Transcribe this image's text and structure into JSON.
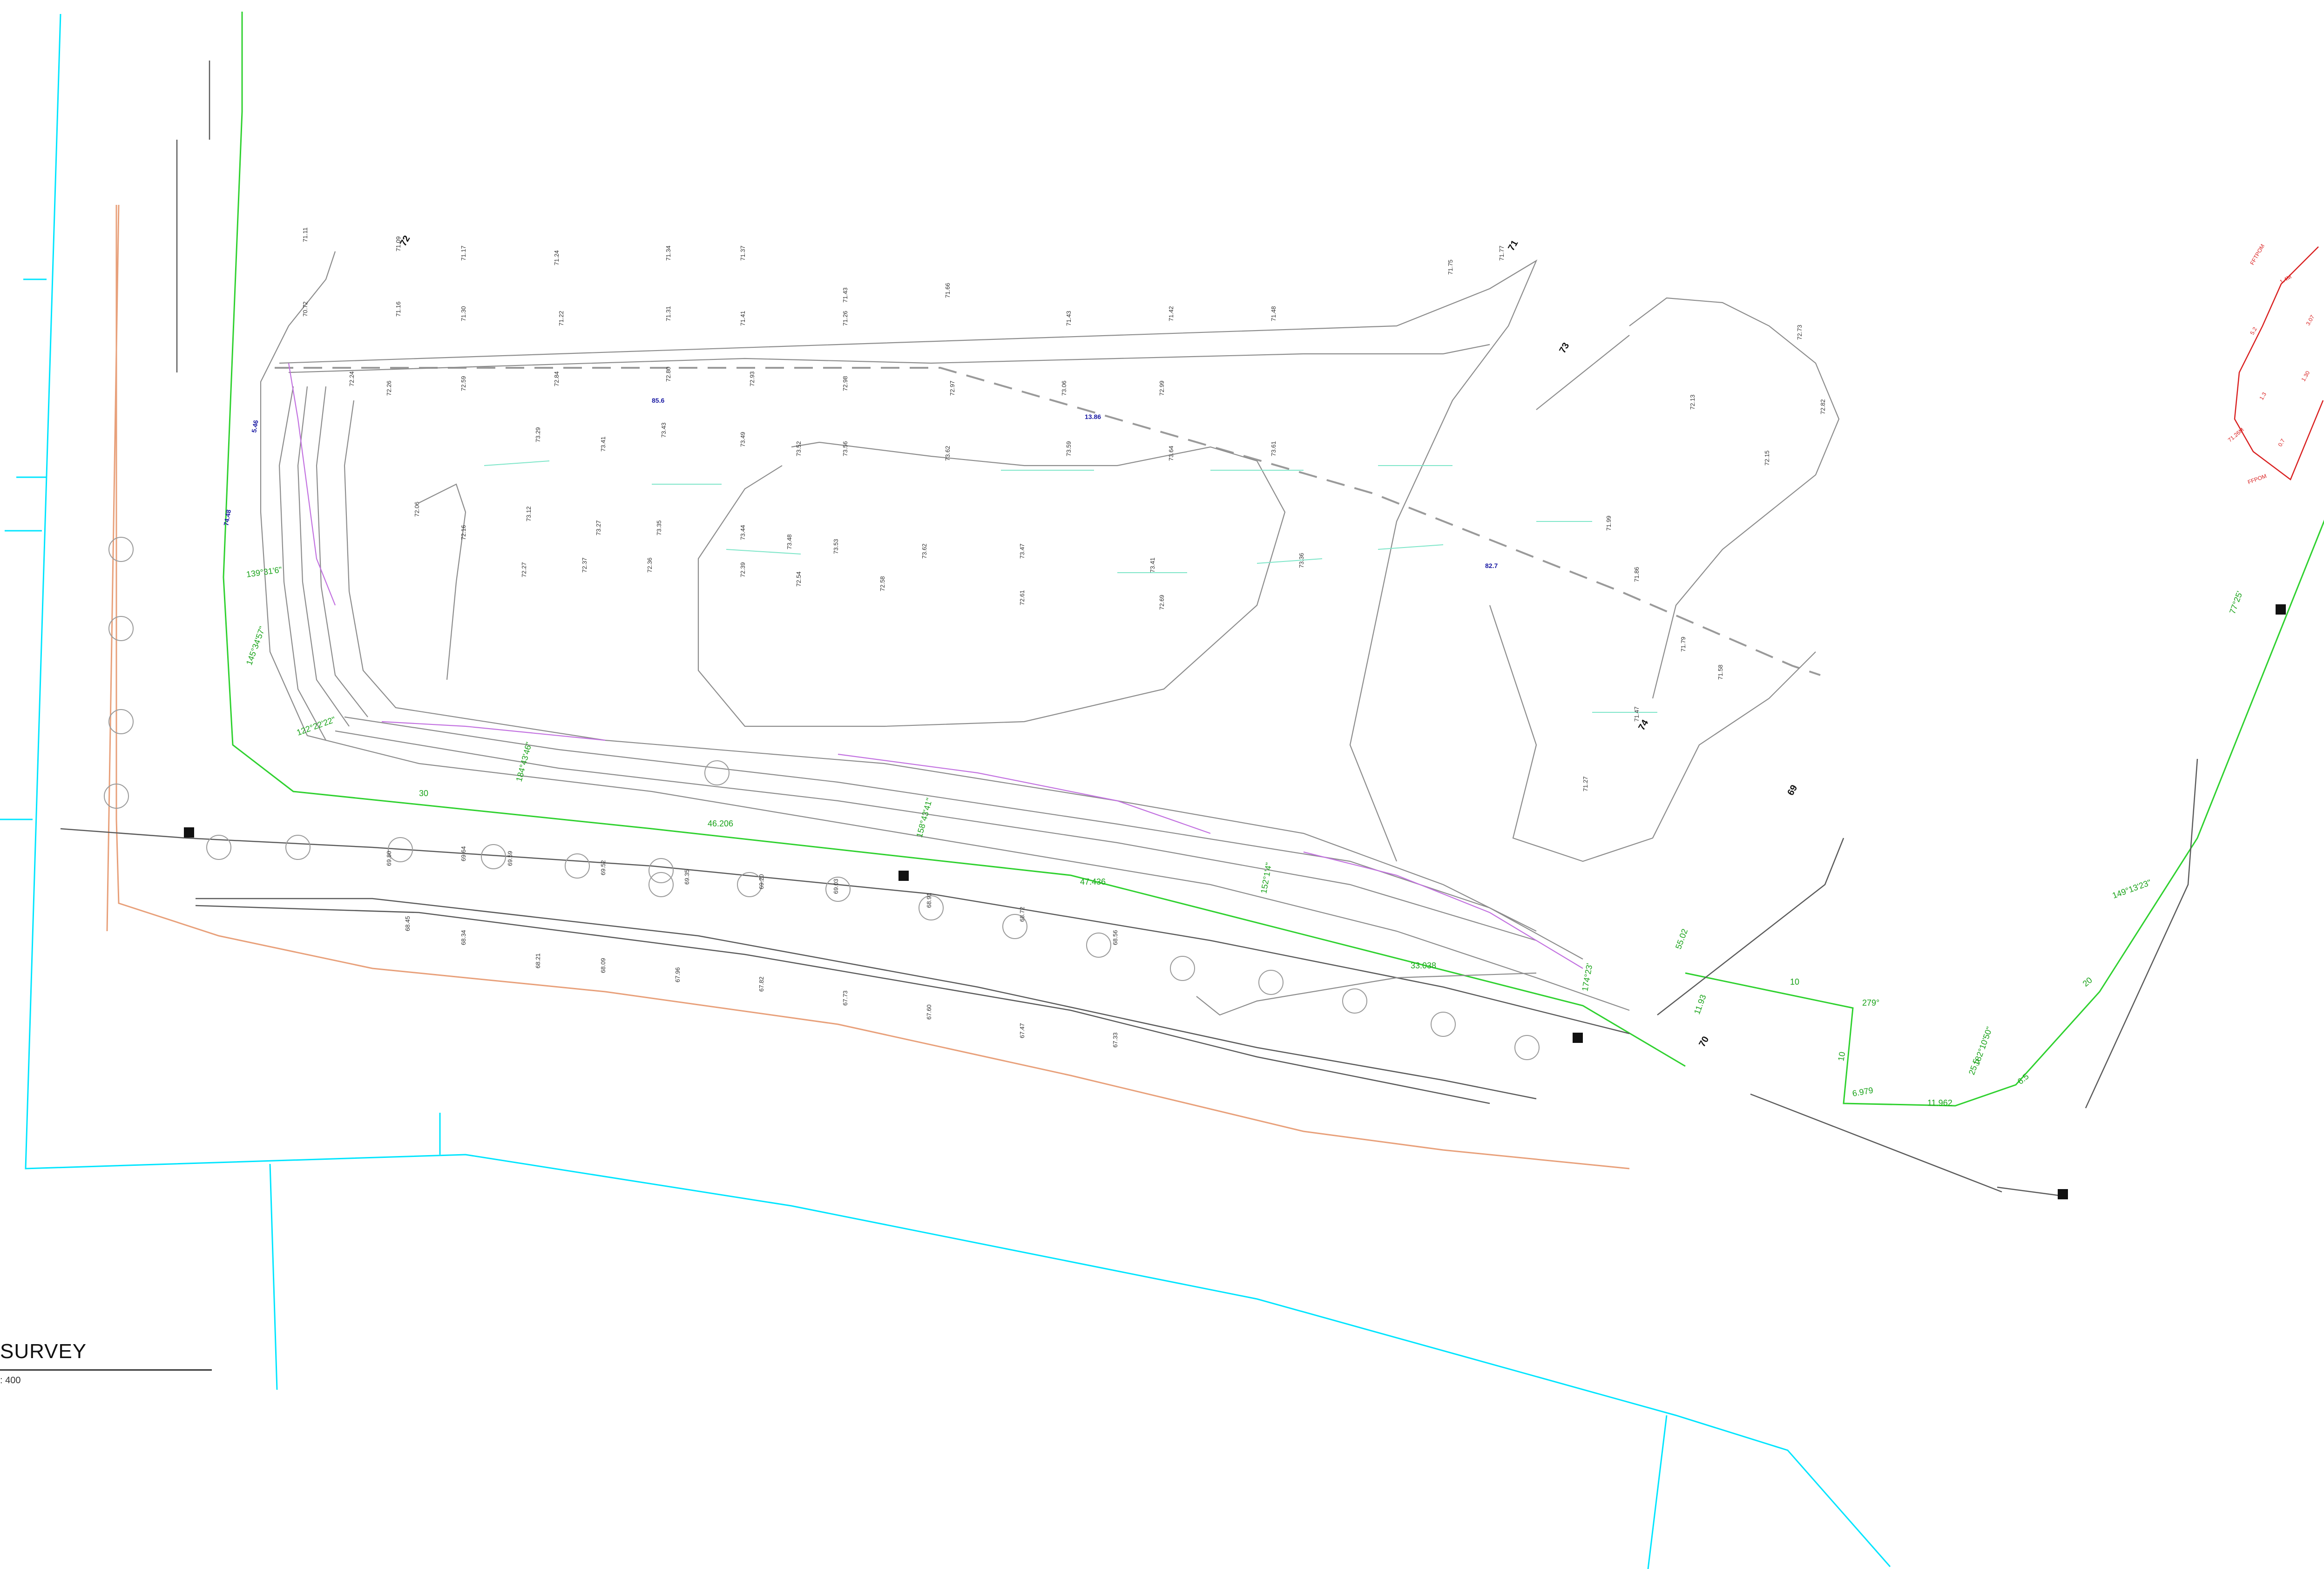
{
  "drawing": {
    "title": "SURVEY",
    "scale": ": 400"
  },
  "levels": [
    "71.11",
    "71.09",
    "71.17",
    "71.24",
    "71.34",
    "71.37",
    "71.43",
    "71.66",
    "71.75",
    "71.77",
    "70.72",
    "71.16",
    "71.30",
    "71.22",
    "71.31",
    "71.41",
    "71.26",
    "71.43",
    "71.42",
    "71.48",
    "72.24",
    "72.26",
    "72.59",
    "72.84",
    "72.80",
    "72.93",
    "72.98",
    "72.97",
    "73.06",
    "72.99",
    "73.29",
    "73.41",
    "73.43",
    "73.49",
    "73.52",
    "73.56",
    "73.62",
    "73.59",
    "73.64",
    "73.61",
    "73.12",
    "73.27",
    "73.35",
    "73.44",
    "73.48",
    "73.53",
    "73.62",
    "73.47",
    "73.41",
    "73.36",
    "72.06",
    "72.16",
    "72.27",
    "72.37",
    "72.36",
    "72.39",
    "72.54",
    "72.58",
    "72.61",
    "72.69",
    "69.80",
    "69.64",
    "69.59",
    "69.52",
    "69.35",
    "69.20",
    "69.03",
    "68.91",
    "68.72",
    "68.56",
    "68.45",
    "68.34",
    "68.21",
    "68.09",
    "67.96",
    "67.82",
    "67.73",
    "67.60",
    "67.47",
    "67.33",
    "72.73",
    "72.82",
    "72.13",
    "72.15",
    "71.99",
    "71.86",
    "71.79",
    "71.58",
    "71.47",
    "71.27"
  ],
  "level_labels_bold": [
    "72",
    "71",
    "73",
    "74",
    "69",
    "70"
  ],
  "bearings": [
    "139°31'6\"",
    "145°34'57\"",
    "122°22'22\"",
    "184°43'46\"",
    "158°43'41\"",
    "152°1'4\"",
    "174°23'",
    "149°13'23\"",
    "182°10'50\"",
    "77°25'",
    "279°"
  ],
  "distances": [
    "30",
    "46.206",
    "47.436",
    "33.038",
    "10",
    "10",
    "11.962",
    "6.979",
    "25.5",
    "20",
    "6.5",
    "55.02",
    "11.93"
  ],
  "spot_blue": [
    "85.6",
    "74.48",
    "5.46",
    "13.86",
    "82.7"
  ],
  "red_labels": [
    "FFTPOM",
    "1.4M",
    "5.2",
    "1.3",
    "71.26M",
    "0.7",
    "FFPOM",
    "3.07",
    "1.30"
  ]
}
